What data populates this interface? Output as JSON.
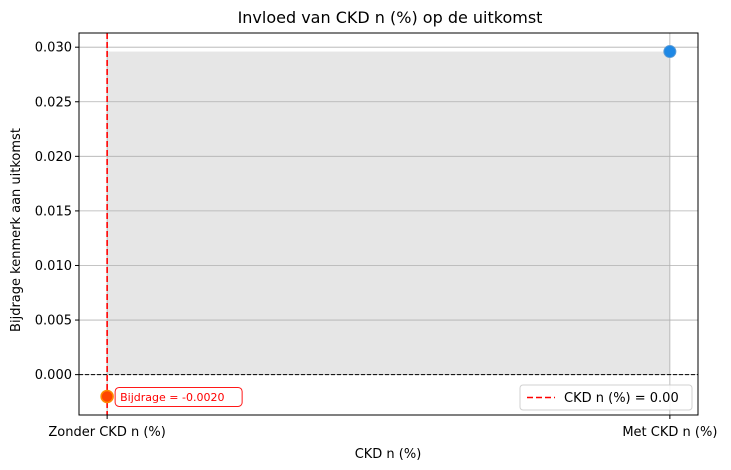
{
  "chart_data": {
    "type": "scatter",
    "title": "Invloed van CKD n (%) op de uitkomst",
    "xlabel": "CKD n (%)",
    "ylabel": "Bijdrage kenmerk aan uitkomst",
    "categories": [
      "Zonder CKD n (%)",
      "Met CKD n (%)"
    ],
    "x": [
      0,
      1
    ],
    "values": [
      -0.002,
      0.0296
    ],
    "ylim": [
      -0.0037,
      0.0313
    ],
    "yticks": [
      0.0,
      0.005,
      0.01,
      0.015,
      0.02,
      0.025,
      0.03
    ],
    "ytick_labels": [
      "0.000",
      "0.005",
      "0.010",
      "0.015",
      "0.020",
      "0.025",
      "0.030"
    ],
    "grid": true,
    "shaded_region_upper": 0.0296,
    "zero_line": 0,
    "vline": {
      "label": "CKD n (%) = 0.00",
      "at": 0,
      "color": "#ff0000",
      "style": "dashed"
    },
    "highlight_point": {
      "x": 0,
      "y": -0.002,
      "label": "Bijdrage = -0.0020",
      "color": "#ff0000"
    },
    "legend_placement": "lower-right",
    "colors": {
      "point": "#1e88e5",
      "highlight": "#ff0000",
      "shade": "#e6e6e6",
      "grid": "#b0b0b0"
    }
  }
}
